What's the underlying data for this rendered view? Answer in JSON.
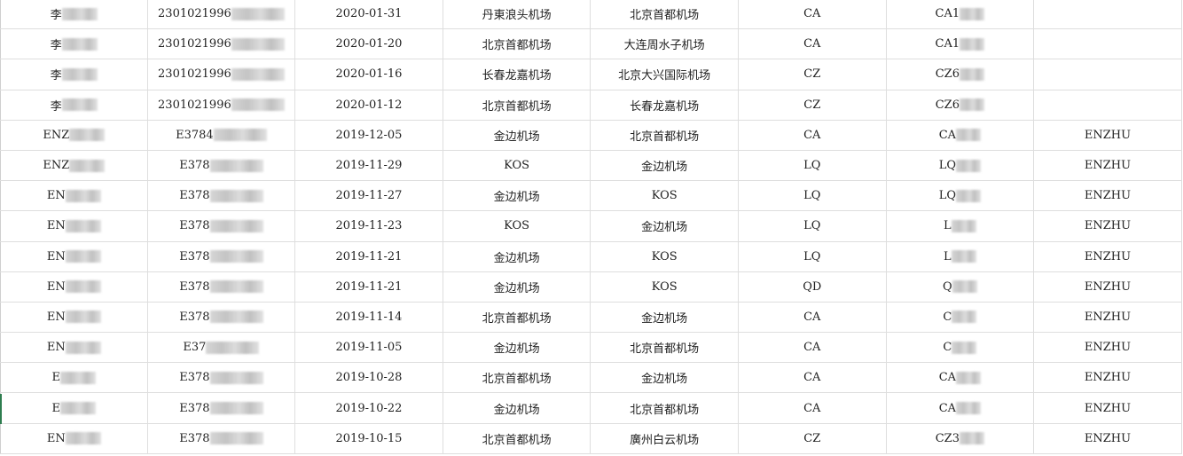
{
  "columns_count": 8,
  "rows": [
    {
      "name": "李",
      "id": "2301021996",
      "date": "2020-01-31",
      "from": "丹東浪头机场",
      "to": "北京首都机场",
      "airline": "CA",
      "flight": "CA1",
      "extra": ""
    },
    {
      "name": "李",
      "id": "2301021996",
      "date": "2020-01-20",
      "from": "北京首都机场",
      "to": "大连周水子机场",
      "airline": "CA",
      "flight": "CA1",
      "extra": ""
    },
    {
      "name": "李",
      "id": "2301021996",
      "date": "2020-01-16",
      "from": "长春龙嘉机场",
      "to": "北京大兴国际机场",
      "airline": "CZ",
      "flight": "CZ6",
      "extra": ""
    },
    {
      "name": "李",
      "id": "2301021996",
      "date": "2020-01-12",
      "from": "北京首都机场",
      "to": "长春龙嘉机场",
      "airline": "CZ",
      "flight": "CZ6",
      "extra": ""
    },
    {
      "name": "ENZ",
      "id": "E3784",
      "date": "2019-12-05",
      "from": "金边机场",
      "to": "北京首都机场",
      "airline": "CA",
      "flight": "CA",
      "extra": "ENZHU"
    },
    {
      "name": "ENZ",
      "id": "E378",
      "date": "2019-11-29",
      "from": "KOS",
      "to": "金边机场",
      "airline": "LQ",
      "flight": "LQ",
      "extra": "ENZHU"
    },
    {
      "name": "EN",
      "id": "E378",
      "date": "2019-11-27",
      "from": "金边机场",
      "to": "KOS",
      "airline": "LQ",
      "flight": "LQ",
      "extra": "ENZHU"
    },
    {
      "name": "EN",
      "id": "E378",
      "date": "2019-11-23",
      "from": "KOS",
      "to": "金边机场",
      "airline": "LQ",
      "flight": "L",
      "extra": "ENZHU"
    },
    {
      "name": "EN",
      "id": "E378",
      "date": "2019-11-21",
      "from": "金边机场",
      "to": "KOS",
      "airline": "LQ",
      "flight": "L",
      "extra": "ENZHU"
    },
    {
      "name": "EN",
      "id": "E378",
      "date": "2019-11-21",
      "from": "金边机场",
      "to": "KOS",
      "airline": "QD",
      "flight": "Q",
      "extra": "ENZHU"
    },
    {
      "name": "EN",
      "id": "E378",
      "date": "2019-11-14",
      "from": "北京首都机场",
      "to": "金边机场",
      "airline": "CA",
      "flight": "C",
      "extra": "ENZHU"
    },
    {
      "name": "EN",
      "id": "E37",
      "date": "2019-11-05",
      "from": "金边机场",
      "to": "北京首都机场",
      "airline": "CA",
      "flight": "C",
      "extra": "ENZHU"
    },
    {
      "name": "E",
      "id": "E378",
      "date": "2019-10-28",
      "from": "北京首都机场",
      "to": "金边机场",
      "airline": "CA",
      "flight": "CA",
      "extra": "ENZHU"
    },
    {
      "name": "E",
      "id": "E378",
      "date": "2019-10-22",
      "from": "金边机场",
      "to": "北京首都机场",
      "airline": "CA",
      "flight": "CA",
      "extra": "ENZHU"
    },
    {
      "name": "EN",
      "id": "E378",
      "date": "2019-10-15",
      "from": "北京首都机场",
      "to": "廣州白云机场",
      "airline": "CZ",
      "flight": "CZ3",
      "extra": "ENZHU"
    }
  ]
}
